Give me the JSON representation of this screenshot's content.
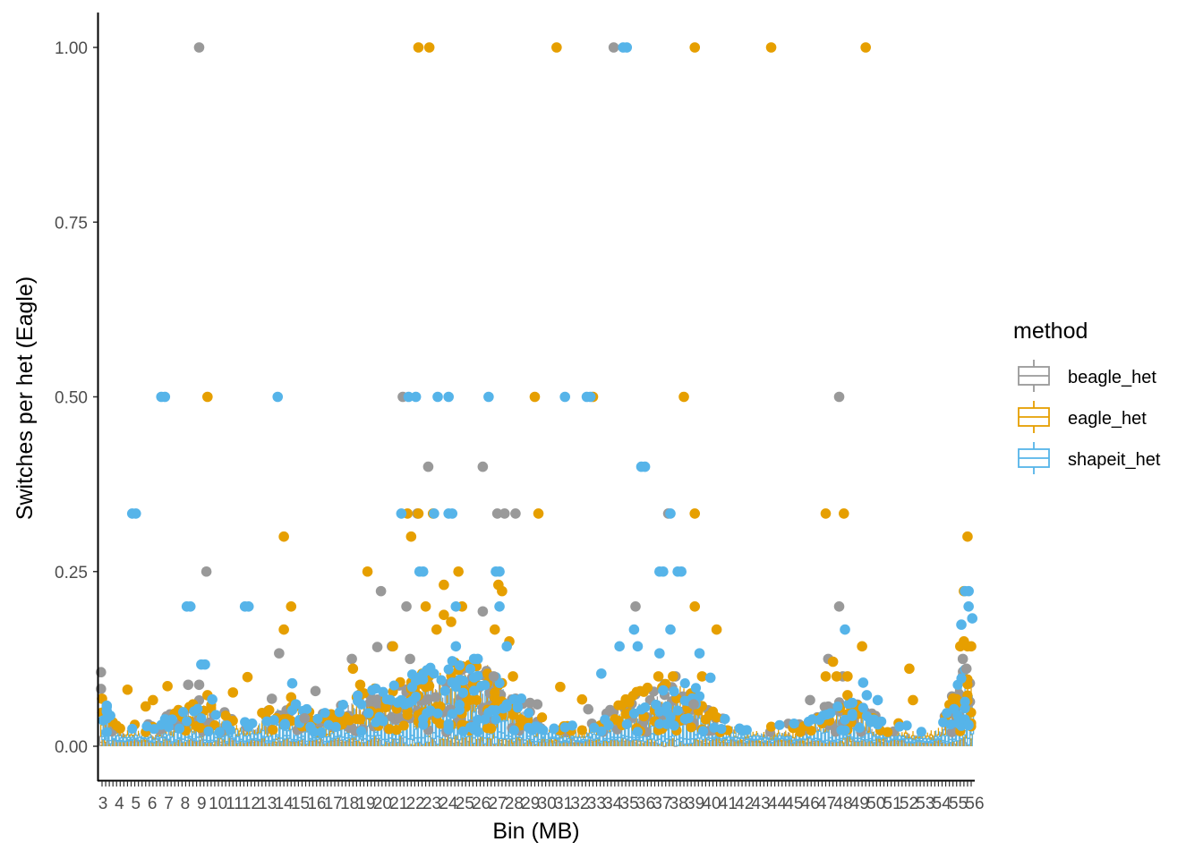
{
  "chart_data": {
    "type": "box",
    "title": "",
    "xlabel": "Bin (MB)",
    "ylabel": "Switches per het (Eagle)",
    "ylim": [
      -0.05,
      1.05
    ],
    "yticks": [
      0.0,
      0.25,
      0.5,
      0.75,
      1.0
    ],
    "ytick_labels": [
      "0.00",
      "0.25",
      "0.50",
      "0.75",
      "1.00"
    ],
    "xtick_labels_visible": [
      "3",
      "4",
      "5",
      "6",
      "7",
      "8",
      "9",
      "10",
      "11",
      "12",
      "13",
      "14",
      "15",
      "16",
      "17",
      "18",
      "19",
      "20",
      "21",
      "22",
      "23",
      "24",
      "25",
      "26",
      "27",
      "28",
      "29",
      "30",
      "31",
      "32",
      "33",
      "34",
      "35",
      "36",
      "37",
      "38",
      "39",
      "40",
      "41",
      "42",
      "43",
      "44",
      "45",
      "46",
      "47",
      "48",
      "49",
      "50",
      "51",
      "52",
      "53",
      "54",
      "55",
      "56"
    ],
    "bin_count": 240,
    "grid": false,
    "legend": {
      "title": "method",
      "position": "right",
      "entries": [
        "beagle_het",
        "eagle_het",
        "shapeit_het"
      ]
    },
    "series": [
      {
        "name": "beagle_het",
        "color": "#999999",
        "median_typical": 0.008,
        "outliers": [
          {
            "bin": 1,
            "y": 0.106
          },
          {
            "bin": 1,
            "y": 0.082
          },
          {
            "bin": 28,
            "y": 1.0
          },
          {
            "bin": 28,
            "y": 0.088
          },
          {
            "bin": 30,
            "y": 0.25
          },
          {
            "bin": 25,
            "y": 0.088
          },
          {
            "bin": 50,
            "y": 0.133
          },
          {
            "bin": 48,
            "y": 0.068
          },
          {
            "bin": 57,
            "y": 0.04
          },
          {
            "bin": 60,
            "y": 0.079
          },
          {
            "bin": 70,
            "y": 0.125
          },
          {
            "bin": 77,
            "y": 0.142
          },
          {
            "bin": 78,
            "y": 0.222
          },
          {
            "bin": 81,
            "y": 0.143
          },
          {
            "bin": 84,
            "y": 0.5
          },
          {
            "bin": 85,
            "y": 0.2
          },
          {
            "bin": 86,
            "y": 0.125
          },
          {
            "bin": 88,
            "y": 0.333
          },
          {
            "bin": 91,
            "y": 0.4
          },
          {
            "bin": 106,
            "y": 0.4
          },
          {
            "bin": 106,
            "y": 0.193
          },
          {
            "bin": 109,
            "y": 0.1
          },
          {
            "bin": 110,
            "y": 0.333
          },
          {
            "bin": 112,
            "y": 0.333
          },
          {
            "bin": 115,
            "y": 0.333
          },
          {
            "bin": 119,
            "y": 0.062
          },
          {
            "bin": 121,
            "y": 0.06
          },
          {
            "bin": 135,
            "y": 0.053
          },
          {
            "bin": 142,
            "y": 1.0
          },
          {
            "bin": 148,
            "y": 0.2
          },
          {
            "bin": 157,
            "y": 0.333
          },
          {
            "bin": 159,
            "y": 0.1
          },
          {
            "bin": 164,
            "y": 0.06
          },
          {
            "bin": 196,
            "y": 0.066
          },
          {
            "bin": 201,
            "y": 0.125
          },
          {
            "bin": 204,
            "y": 0.5
          },
          {
            "bin": 204,
            "y": 0.2
          },
          {
            "bin": 205,
            "y": 0.1
          },
          {
            "bin": 238,
            "y": 0.125
          },
          {
            "bin": 239,
            "y": 0.111
          }
        ]
      },
      {
        "name": "eagle_het",
        "color": "#E69F00",
        "median_typical": 0.012,
        "outliers": [
          {
            "bin": 1,
            "y": 0.068
          },
          {
            "bin": 8,
            "y": 0.081
          },
          {
            "bin": 13,
            "y": 0.057
          },
          {
            "bin": 15,
            "y": 0.066
          },
          {
            "bin": 19,
            "y": 0.086
          },
          {
            "bin": 30,
            "y": 0.5
          },
          {
            "bin": 30,
            "y": 0.073
          },
          {
            "bin": 37,
            "y": 0.077
          },
          {
            "bin": 41,
            "y": 0.099
          },
          {
            "bin": 51,
            "y": 0.3
          },
          {
            "bin": 51,
            "y": 0.167
          },
          {
            "bin": 53,
            "y": 0.2
          },
          {
            "bin": 53,
            "y": 0.07
          },
          {
            "bin": 70,
            "y": 0.111
          },
          {
            "bin": 72,
            "y": 0.088
          },
          {
            "bin": 74,
            "y": 0.25
          },
          {
            "bin": 81,
            "y": 0.143
          },
          {
            "bin": 85,
            "y": 0.333
          },
          {
            "bin": 86,
            "y": 0.3
          },
          {
            "bin": 88,
            "y": 1.0
          },
          {
            "bin": 88,
            "y": 0.333
          },
          {
            "bin": 90,
            "y": 0.2
          },
          {
            "bin": 91,
            "y": 1.0
          },
          {
            "bin": 92,
            "y": 0.333
          },
          {
            "bin": 93,
            "y": 0.167
          },
          {
            "bin": 95,
            "y": 0.231
          },
          {
            "bin": 95,
            "y": 0.188
          },
          {
            "bin": 97,
            "y": 0.178
          },
          {
            "bin": 99,
            "y": 0.25
          },
          {
            "bin": 100,
            "y": 0.2
          },
          {
            "bin": 109,
            "y": 0.167
          },
          {
            "bin": 110,
            "y": 0.231
          },
          {
            "bin": 111,
            "y": 0.222
          },
          {
            "bin": 113,
            "y": 0.15
          },
          {
            "bin": 114,
            "y": 0.1
          },
          {
            "bin": 120,
            "y": 0.5
          },
          {
            "bin": 121,
            "y": 0.333
          },
          {
            "bin": 126,
            "y": 1.0
          },
          {
            "bin": 127,
            "y": 0.085
          },
          {
            "bin": 133,
            "y": 0.067
          },
          {
            "bin": 136,
            "y": 0.5
          },
          {
            "bin": 154,
            "y": 0.1
          },
          {
            "bin": 158,
            "y": 0.1
          },
          {
            "bin": 161,
            "y": 0.5
          },
          {
            "bin": 164,
            "y": 1.0
          },
          {
            "bin": 164,
            "y": 0.333
          },
          {
            "bin": 164,
            "y": 0.2
          },
          {
            "bin": 166,
            "y": 0.1
          },
          {
            "bin": 170,
            "y": 0.167
          },
          {
            "bin": 185,
            "y": 1.0
          },
          {
            "bin": 200,
            "y": 0.333
          },
          {
            "bin": 200,
            "y": 0.1
          },
          {
            "bin": 205,
            "y": 0.333
          },
          {
            "bin": 210,
            "y": 0.143
          },
          {
            "bin": 206,
            "y": 0.1
          },
          {
            "bin": 203,
            "y": 0.1
          },
          {
            "bin": 202,
            "y": 0.121
          },
          {
            "bin": 206,
            "y": 0.073
          },
          {
            "bin": 211,
            "y": 1.0
          },
          {
            "bin": 223,
            "y": 0.111
          },
          {
            "bin": 224,
            "y": 0.066
          },
          {
            "bin": 239,
            "y": 0.3
          },
          {
            "bin": 238,
            "y": 0.222
          },
          {
            "bin": 238,
            "y": 0.15
          },
          {
            "bin": 237,
            "y": 0.143
          },
          {
            "bin": 239,
            "y": 0.143
          },
          {
            "bin": 240,
            "y": 0.143
          }
        ]
      },
      {
        "name": "shapeit_het",
        "color": "#56B4E9",
        "median_typical": 0.01,
        "outliers": [
          {
            "bin": 2,
            "y": 0.058
          },
          {
            "bin": 2,
            "y": 0.05
          },
          {
            "bin": 2,
            "y": 0.04
          },
          {
            "bin": 9,
            "y": 0.333
          },
          {
            "bin": 10,
            "y": 0.333
          },
          {
            "bin": 17,
            "y": 0.5
          },
          {
            "bin": 18,
            "y": 0.5
          },
          {
            "bin": 24,
            "y": 0.2
          },
          {
            "bin": 25,
            "y": 0.2
          },
          {
            "bin": 28,
            "y": 0.117
          },
          {
            "bin": 29,
            "y": 0.117
          },
          {
            "bin": 31,
            "y": 0.067
          },
          {
            "bin": 40,
            "y": 0.2
          },
          {
            "bin": 41,
            "y": 0.2
          },
          {
            "bin": 49,
            "y": 0.5
          },
          {
            "bin": 53,
            "y": 0.09
          },
          {
            "bin": 54,
            "y": 0.06
          },
          {
            "bin": 83,
            "y": 0.333
          },
          {
            "bin": 85,
            "y": 0.5
          },
          {
            "bin": 87,
            "y": 0.5
          },
          {
            "bin": 88,
            "y": 0.25
          },
          {
            "bin": 89,
            "y": 0.25
          },
          {
            "bin": 92,
            "y": 0.333
          },
          {
            "bin": 93,
            "y": 0.5
          },
          {
            "bin": 96,
            "y": 0.5
          },
          {
            "bin": 96,
            "y": 0.333
          },
          {
            "bin": 97,
            "y": 0.333
          },
          {
            "bin": 98,
            "y": 0.2
          },
          {
            "bin": 98,
            "y": 0.143
          },
          {
            "bin": 99,
            "y": 0.095
          },
          {
            "bin": 103,
            "y": 0.125
          },
          {
            "bin": 104,
            "y": 0.125
          },
          {
            "bin": 107,
            "y": 0.5
          },
          {
            "bin": 109,
            "y": 0.25
          },
          {
            "bin": 110,
            "y": 0.25
          },
          {
            "bin": 110,
            "y": 0.2
          },
          {
            "bin": 112,
            "y": 0.143
          },
          {
            "bin": 128,
            "y": 0.5
          },
          {
            "bin": 134,
            "y": 0.5
          },
          {
            "bin": 135,
            "y": 0.5
          },
          {
            "bin": 138,
            "y": 0.104
          },
          {
            "bin": 144,
            "y": 1.0
          },
          {
            "bin": 145,
            "y": 1.0
          },
          {
            "bin": 143,
            "y": 0.143
          },
          {
            "bin": 147,
            "y": 0.167
          },
          {
            "bin": 148,
            "y": 0.143
          },
          {
            "bin": 149,
            "y": 0.4
          },
          {
            "bin": 150,
            "y": 0.4
          },
          {
            "bin": 154,
            "y": 0.25
          },
          {
            "bin": 155,
            "y": 0.25
          },
          {
            "bin": 154,
            "y": 0.133
          },
          {
            "bin": 155,
            "y": 0.08
          },
          {
            "bin": 157,
            "y": 0.333
          },
          {
            "bin": 157,
            "y": 0.167
          },
          {
            "bin": 159,
            "y": 0.25
          },
          {
            "bin": 160,
            "y": 0.25
          },
          {
            "bin": 165,
            "y": 0.133
          },
          {
            "bin": 168,
            "y": 0.098
          },
          {
            "bin": 205,
            "y": 0.167
          },
          {
            "bin": 207,
            "y": 0.062
          },
          {
            "bin": 210,
            "y": 0.091
          },
          {
            "bin": 211,
            "y": 0.073
          },
          {
            "bin": 214,
            "y": 0.066
          },
          {
            "bin": 237,
            "y": 0.174
          },
          {
            "bin": 238,
            "y": 0.222
          },
          {
            "bin": 239,
            "y": 0.222
          },
          {
            "bin": 239,
            "y": 0.2
          },
          {
            "bin": 240,
            "y": 0.183
          }
        ]
      }
    ]
  }
}
